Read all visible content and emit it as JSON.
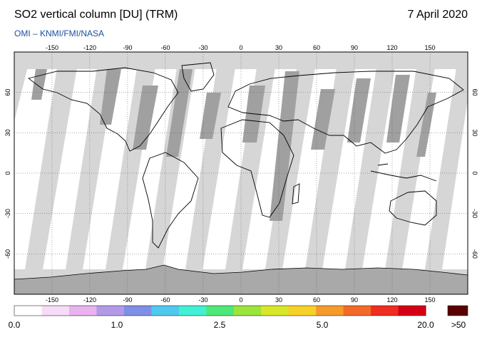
{
  "header": {
    "title": "SO2 vertical column [DU] (TRM)",
    "date": "7 April 2020",
    "source": "OMI  –  KNMI/FMI/NASA"
  },
  "map": {
    "lon_ticks": [
      "-150",
      "-120",
      "-90",
      "-60",
      "-30",
      "0",
      "30",
      "60",
      "90",
      "120",
      "150"
    ],
    "lat_ticks": [
      "60",
      "30",
      "0",
      "-30",
      "-60"
    ],
    "lon_range": [
      -180,
      180
    ],
    "lat_range": [
      -90,
      90
    ],
    "colors": {
      "ocean": "#ffffff",
      "land": "#ffffff",
      "coverage_light": "#d6d6d6",
      "coverage_dark": "#9e9e9e"
    }
  },
  "colorbar": {
    "labels": [
      "0.0",
      "1.0",
      "2.5",
      "5.0",
      "20.0"
    ],
    "overflow_label": ">50",
    "overflow_color": "#5a0000",
    "colors": [
      "#ffffff",
      "#f7dcf7",
      "#e9b3ef",
      "#b39ae6",
      "#7f8fe6",
      "#4fc9ee",
      "#43f0d4",
      "#4de878",
      "#9be43c",
      "#d8e62a",
      "#f5d12a",
      "#f59b2c",
      "#f26a28",
      "#ee2e20",
      "#d60016"
    ]
  }
}
